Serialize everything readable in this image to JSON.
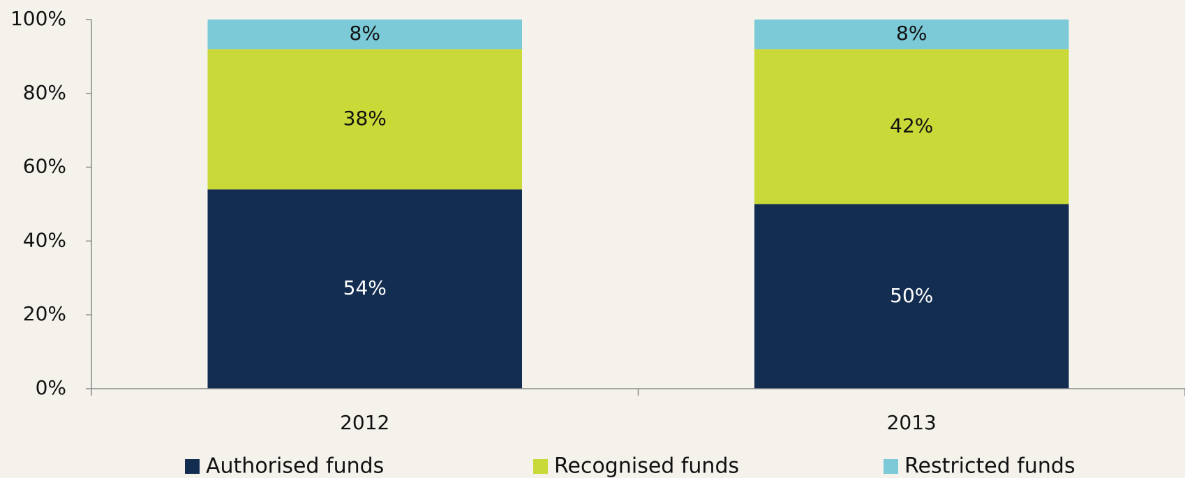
{
  "chart_data": {
    "type": "stacked_bar",
    "categories": [
      "2012",
      "2013"
    ],
    "series": [
      {
        "name": "Authorised funds",
        "color": "#132d50",
        "values": [
          54,
          50
        ],
        "value_labels": [
          "54%",
          "50%"
        ]
      },
      {
        "name": "Recognised funds",
        "color": "#c9d938",
        "values": [
          38,
          42
        ],
        "value_labels": [
          "38%",
          "42%"
        ]
      },
      {
        "name": "Restricted funds",
        "color": "#7ccad8",
        "values": [
          8,
          8
        ],
        "value_labels": [
          "8%",
          "8%"
        ]
      }
    ],
    "ylim": [
      0,
      100
    ],
    "yticks": [
      {
        "value": 0,
        "label": "0%"
      },
      {
        "value": 20,
        "label": "20%"
      },
      {
        "value": 40,
        "label": "40%"
      },
      {
        "value": 60,
        "label": "60%"
      },
      {
        "value": 80,
        "label": "80%"
      },
      {
        "value": 100,
        "label": "100%"
      }
    ],
    "grid": false,
    "legend": "bottom"
  }
}
